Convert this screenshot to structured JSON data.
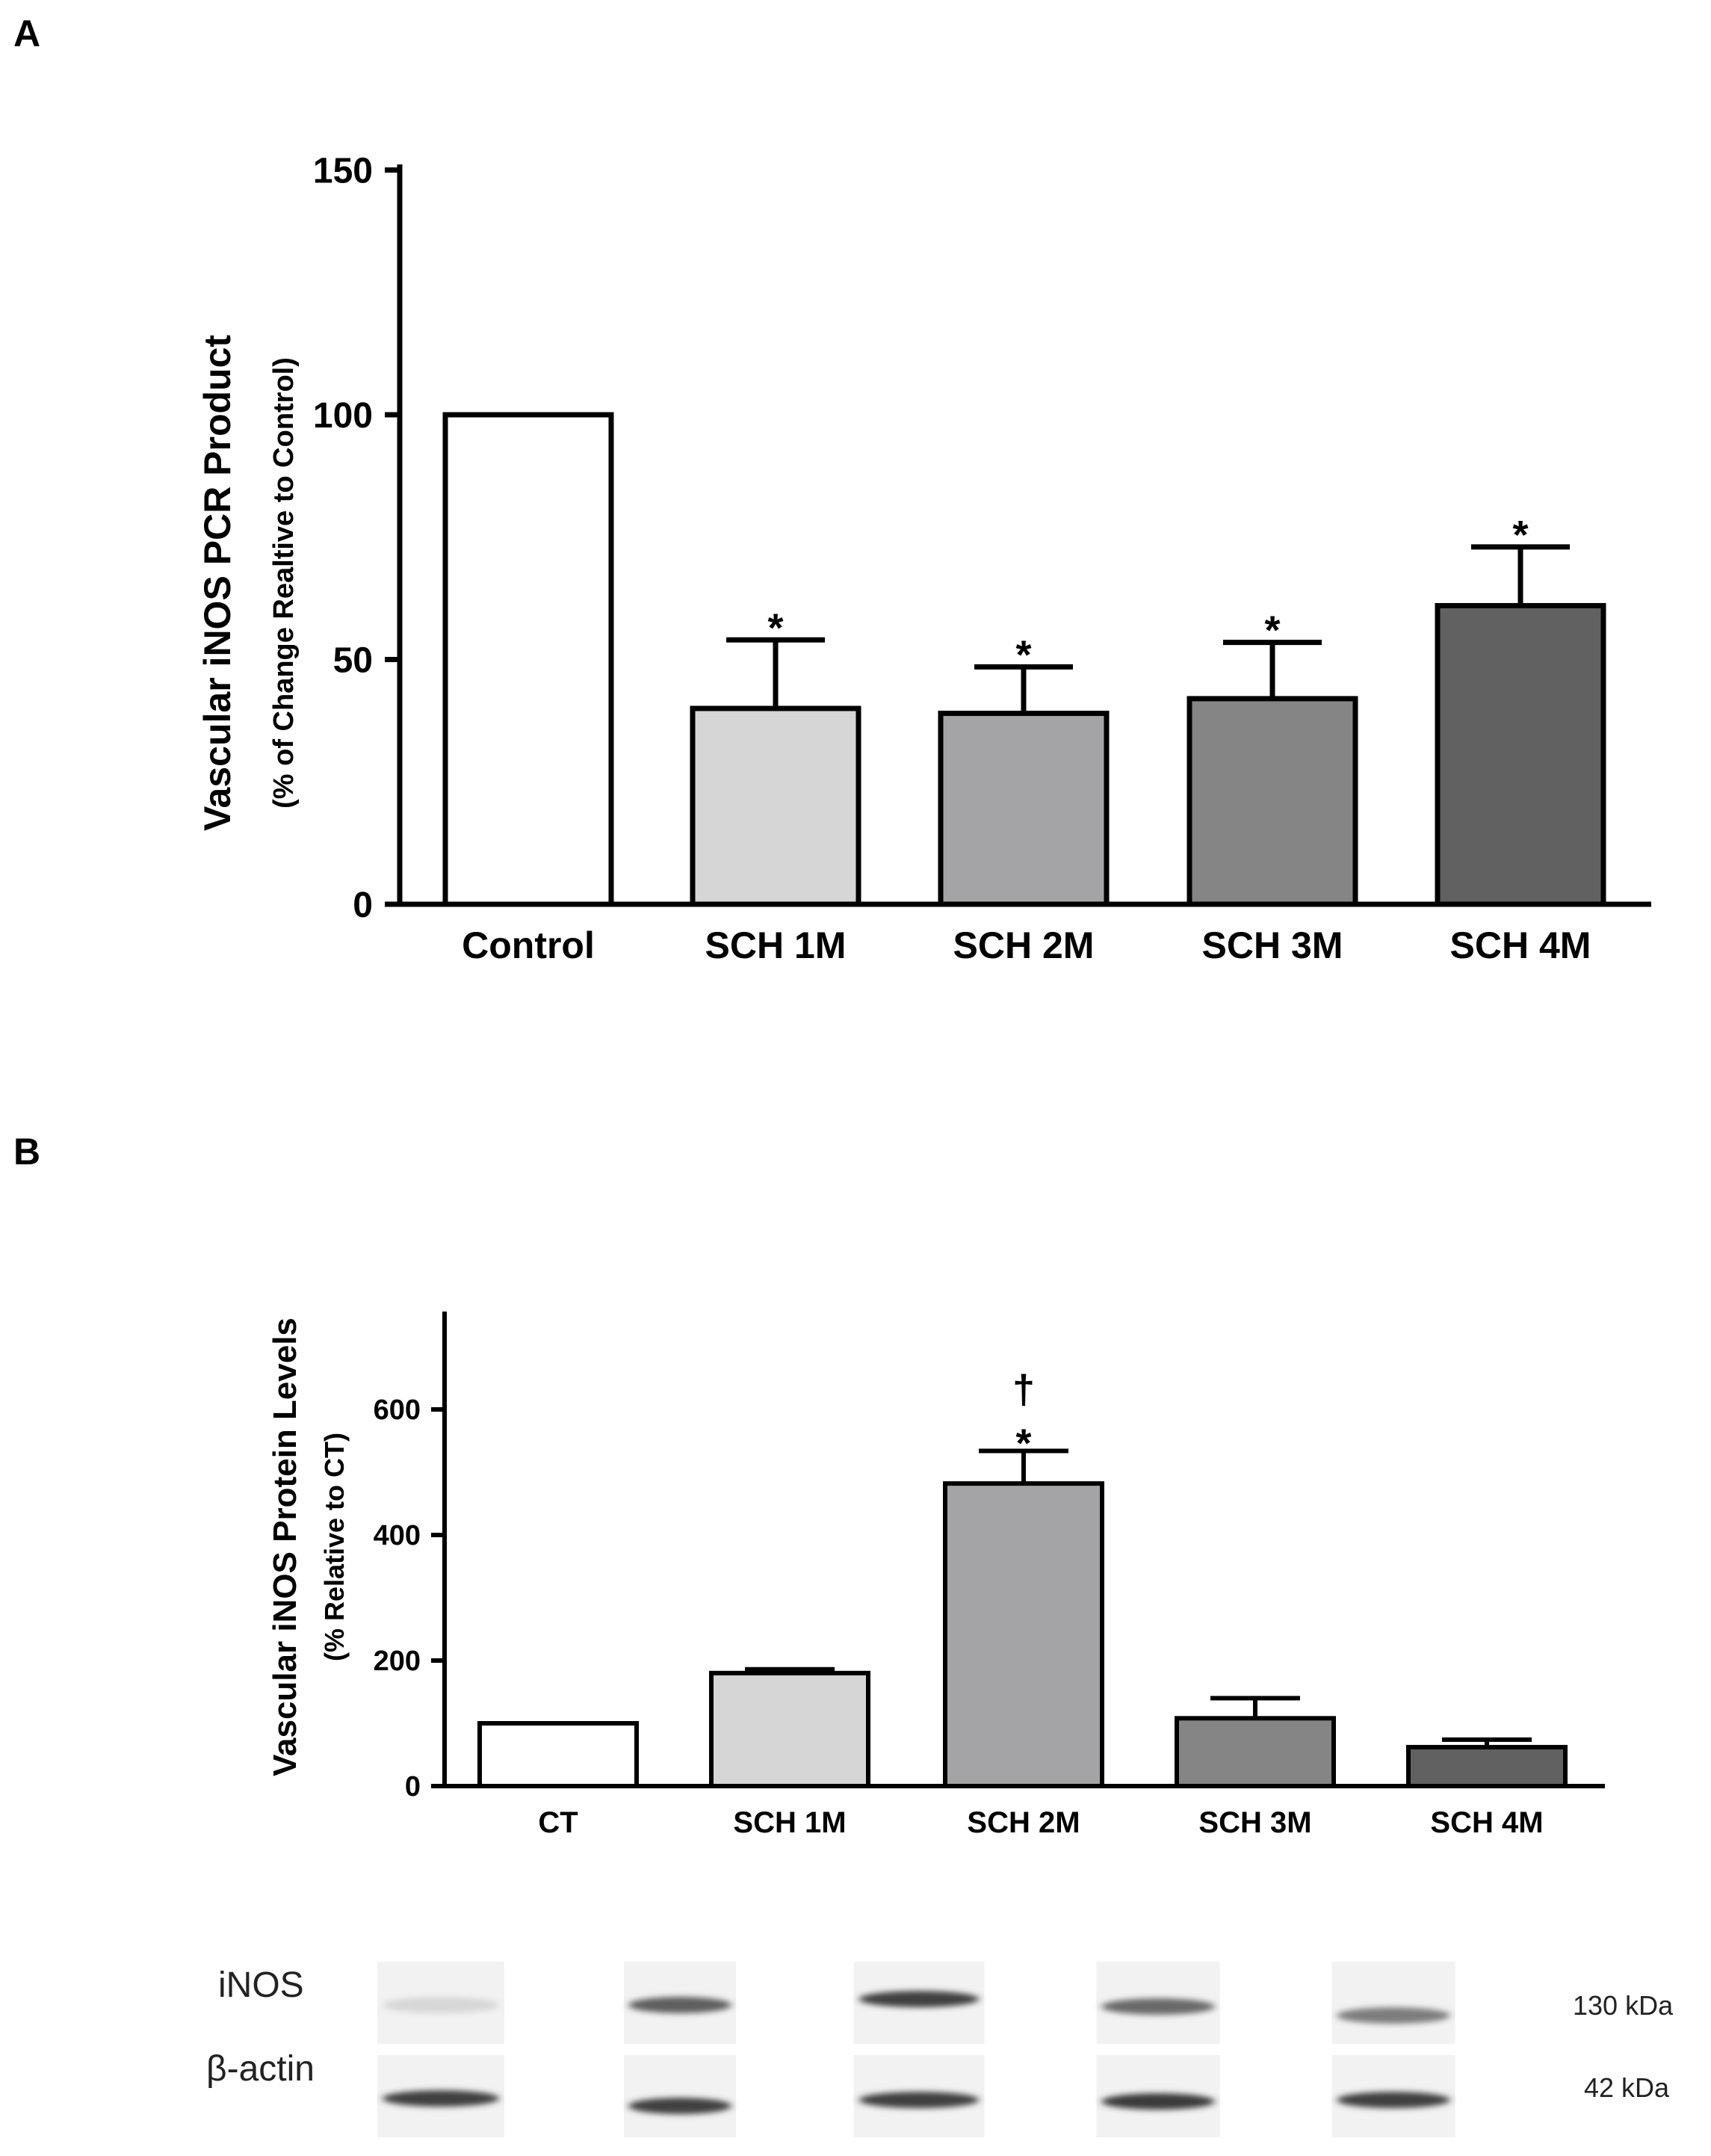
{
  "chart_data": [
    {
      "panel": "A",
      "type": "bar",
      "title": "",
      "xlabel": "",
      "ylabel": "Vascular iNOS PCR Product",
      "ylabel_sub": "(% of Change Realtive to Control)",
      "ylim": [
        0,
        150
      ],
      "yticks": [
        0,
        50,
        100,
        150
      ],
      "grid": false,
      "categories": [
        "Control",
        "SCH 1M",
        "SCH 2M",
        "SCH 3M",
        "SCH 4M"
      ],
      "values": [
        100,
        40,
        39,
        42,
        61
      ],
      "errors": [
        0,
        14,
        9.5,
        11.5,
        12
      ],
      "annotations": [
        "",
        "*",
        "*",
        "*",
        "*"
      ],
      "colors": [
        "#ffffff",
        "#d6d6d6",
        "#a4a4a6",
        "#858585",
        "#616161"
      ]
    },
    {
      "panel": "B",
      "type": "bar",
      "title": "",
      "xlabel": "",
      "ylabel": "Vascular iNOS Protein Levels",
      "ylabel_sub": "(% Relative to CT)",
      "ylim": [
        0,
        750
      ],
      "yticks": [
        0,
        200,
        400,
        600
      ],
      "grid": false,
      "categories": [
        "CT",
        "SCH 1M",
        "SCH 2M",
        "SCH 3M",
        "SCH 4M"
      ],
      "values": [
        100,
        180,
        482,
        108,
        62
      ],
      "errors": [
        0,
        6,
        52,
        32,
        12
      ],
      "annotations": [
        "",
        "",
        "*",
        "",
        ""
      ],
      "annotations_top": [
        "",
        "",
        "†",
        "",
        ""
      ],
      "colors": [
        "#ffffff",
        "#d6d6d6",
        "#a4a4a6",
        "#858585",
        "#616161"
      ]
    }
  ],
  "blot": {
    "rows": [
      {
        "label": "iNOS",
        "kda": "130 kDa",
        "intensity": [
          0.1,
          0.7,
          0.85,
          0.65,
          0.55
        ]
      },
      {
        "label": "β-actin",
        "kda": "42 kDa",
        "intensity": [
          0.85,
          0.85,
          0.85,
          0.88,
          0.85
        ]
      }
    ]
  }
}
